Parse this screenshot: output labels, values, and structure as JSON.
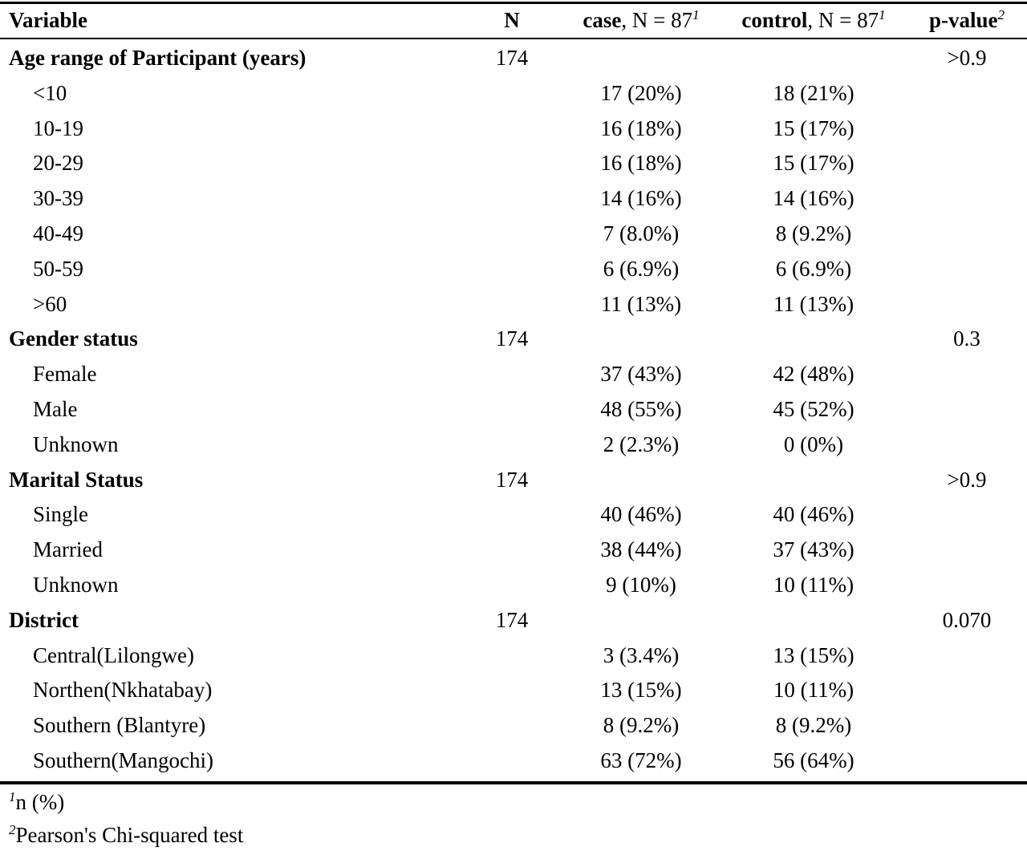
{
  "header": {
    "variable": "Variable",
    "n": "N",
    "case_label": "case",
    "case_n": ", N = 87",
    "case_sup": "1",
    "control_label": "control",
    "control_n": ", N = 87",
    "control_sup": "1",
    "p_label": "p-value",
    "p_sup": "2"
  },
  "rows": [
    {
      "variable": "Age range of Participant (years)",
      "n": "174",
      "case": "",
      "control": "",
      "p": ">0.9",
      "group": true
    },
    {
      "variable": "<10",
      "n": "",
      "case": "17 (20%)",
      "control": "18 (21%)",
      "p": "",
      "group": false
    },
    {
      "variable": "10-19",
      "n": "",
      "case": "16 (18%)",
      "control": "15 (17%)",
      "p": "",
      "group": false
    },
    {
      "variable": "20-29",
      "n": "",
      "case": "16 (18%)",
      "control": "15 (17%)",
      "p": "",
      "group": false
    },
    {
      "variable": "30-39",
      "n": "",
      "case": "14 (16%)",
      "control": "14 (16%)",
      "p": "",
      "group": false
    },
    {
      "variable": "40-49",
      "n": "",
      "case": "7 (8.0%)",
      "control": "8 (9.2%)",
      "p": "",
      "group": false
    },
    {
      "variable": "50-59",
      "n": "",
      "case": "6 (6.9%)",
      "control": "6 (6.9%)",
      "p": "",
      "group": false
    },
    {
      "variable": ">60",
      "n": "",
      "case": "11 (13%)",
      "control": "11 (13%)",
      "p": "",
      "group": false
    },
    {
      "variable": "Gender status",
      "n": "174",
      "case": "",
      "control": "",
      "p": "0.3",
      "group": true
    },
    {
      "variable": "Female",
      "n": "",
      "case": "37 (43%)",
      "control": "42 (48%)",
      "p": "",
      "group": false
    },
    {
      "variable": "Male",
      "n": "",
      "case": "48 (55%)",
      "control": "45 (52%)",
      "p": "",
      "group": false
    },
    {
      "variable": "Unknown",
      "n": "",
      "case": "2 (2.3%)",
      "control": "0 (0%)",
      "p": "",
      "group": false
    },
    {
      "variable": "Marital Status",
      "n": "174",
      "case": "",
      "control": "",
      "p": ">0.9",
      "group": true
    },
    {
      "variable": "Single",
      "n": "",
      "case": "40 (46%)",
      "control": "40 (46%)",
      "p": "",
      "group": false
    },
    {
      "variable": "Married",
      "n": "",
      "case": "38 (44%)",
      "control": "37 (43%)",
      "p": "",
      "group": false
    },
    {
      "variable": "Unknown",
      "n": "",
      "case": "9 (10%)",
      "control": "10 (11%)",
      "p": "",
      "group": false
    },
    {
      "variable": "District",
      "n": "174",
      "case": "",
      "control": "",
      "p": "0.070",
      "group": true
    },
    {
      "variable": "Central(Lilongwe)",
      "n": "",
      "case": "3 (3.4%)",
      "control": "13 (15%)",
      "p": "",
      "group": false
    },
    {
      "variable": "Northen(Nkhatabay)",
      "n": "",
      "case": "13 (15%)",
      "control": "10 (11%)",
      "p": "",
      "group": false
    },
    {
      "variable": "Southern (Blantyre)",
      "n": "",
      "case": "8 (9.2%)",
      "control": "8 (9.2%)",
      "p": "",
      "group": false
    },
    {
      "variable": "Southern(Mangochi)",
      "n": "",
      "case": "63 (72%)",
      "control": "56 (64%)",
      "p": "",
      "group": false
    }
  ],
  "footnotes": [
    {
      "sup": "1",
      "text": "n (%)"
    },
    {
      "sup": "2",
      "text": "Pearson's Chi-squared test"
    }
  ]
}
